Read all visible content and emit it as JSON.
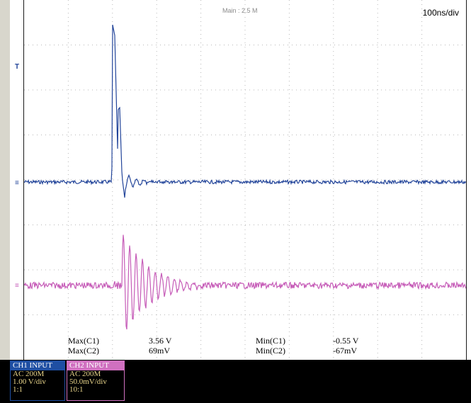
{
  "header": {
    "acquisition": "Main : 2.5 M",
    "timebase": "100ns/div"
  },
  "markers": {
    "trigger_level": "T",
    "ch1_ground": "1",
    "ch2_ground": "2"
  },
  "measurements": [
    {
      "label": "Max(C1)",
      "value": "3.56 V"
    },
    {
      "label": "Max(C2)",
      "value": "69mV"
    },
    {
      "label": "Min(C1)",
      "value": "-0.55 V"
    },
    {
      "label": "Min(C2)",
      "value": "-67mV"
    }
  ],
  "channels": [
    {
      "title": "CH1  INPUT",
      "coupling": "AC 200M",
      "scale": "1.00 V/div",
      "probe": "1:1",
      "color": "#1f4fa3"
    },
    {
      "title": "CH2  INPUT",
      "coupling": "AC 200M",
      "scale": "50.0mV/div",
      "probe": "10:1",
      "color": "#d070c0"
    }
  ],
  "colors": {
    "ch1_trace": "#23459a",
    "ch2_trace": "#c65cb8",
    "grid": "#b8b8b8"
  }
}
